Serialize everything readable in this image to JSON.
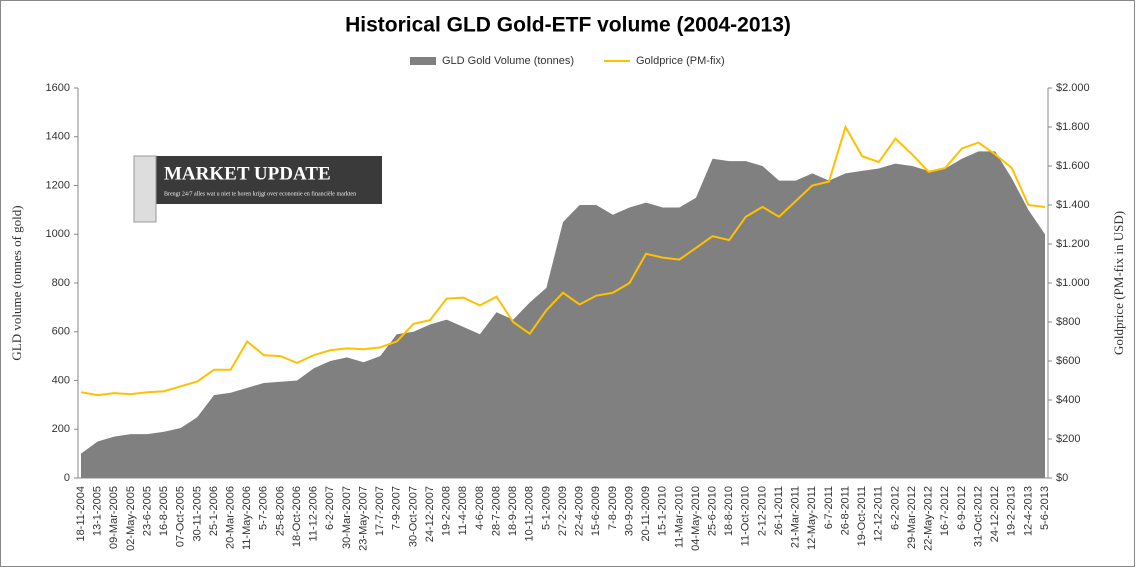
{
  "chart_data": {
    "type": "area-line",
    "title": "Historical GLD Gold-ETF volume (2004-2013)",
    "y_label": "GLD volume (tonnes of gold)",
    "y2_label": "Goldprice (PM-fix in USD)",
    "annotations": [
      "MARKET UPDATE",
      "Brengt 24/7 alles wat u niet te horen krijgt over economie en financiële markten"
    ],
    "categories": [
      "18-11-2004",
      "13-1-2005",
      "09-Mar-2005",
      "02-May-2005",
      "23-6-2005",
      "16-8-2005",
      "07-Oct-2005",
      "30-11-2005",
      "25-1-2006",
      "20-Mar-2006",
      "11-May-2006",
      "5-7-2006",
      "25-8-2006",
      "18-Oct-2006",
      "11-12-2006",
      "6-2-2007",
      "30-Mar-2007",
      "23-May-2007",
      "17-7-2007",
      "7-9-2007",
      "30-Oct-2007",
      "24-12-2007",
      "19-2-2008",
      "11-4-2008",
      "4-6-2008",
      "28-7-2008",
      "18-9-2008",
      "10-11-2008",
      "5-1-2009",
      "27-2-2009",
      "22-4-2009",
      "15-6-2009",
      "7-8-2009",
      "30-9-2009",
      "20-11-2009",
      "15-1-2010",
      "11-Mar-2010",
      "04-May-2010",
      "25-6-2010",
      "18-8-2010",
      "11-Oct-2010",
      "2-12-2010",
      "26-1-2011",
      "21-Mar-2011",
      "12-May-2011",
      "6-7-2011",
      "26-8-2011",
      "19-Oct-2011",
      "12-12-2011",
      "6-2-2012",
      "29-Mar-2012",
      "22-May-2012",
      "16-7-2012",
      "6-9-2012",
      "31-Oct-2012",
      "24-12-2012",
      "19-2-2013",
      "12-4-2013",
      "5-6-2013"
    ],
    "series": [
      {
        "name": "GLD Gold Volume (tonnes)",
        "color": "#808080",
        "kind": "area",
        "values": [
          100,
          150,
          170,
          180,
          180,
          190,
          205,
          250,
          340,
          350,
          370,
          390,
          395,
          400,
          450,
          480,
          495,
          475,
          500,
          590,
          600,
          630,
          650,
          620,
          590,
          680,
          650,
          720,
          780,
          1050,
          1120,
          1120,
          1080,
          1110,
          1130,
          1110,
          1110,
          1150,
          1310,
          1300,
          1300,
          1280,
          1220,
          1220,
          1250,
          1220,
          1250,
          1260,
          1270,
          1290,
          1280,
          1260,
          1270,
          1310,
          1340,
          1340,
          1230,
          1100,
          1000
        ]
      },
      {
        "name": "Goldprice (PM-fix)",
        "color": "#ffc000",
        "kind": "line",
        "axis": "y2",
        "values": [
          440,
          425,
          435,
          430,
          440,
          445,
          470,
          495,
          555,
          555,
          700,
          630,
          625,
          590,
          630,
          655,
          665,
          660,
          670,
          700,
          790,
          810,
          920,
          925,
          885,
          930,
          800,
          740,
          860,
          950,
          890,
          935,
          950,
          1000,
          1150,
          1130,
          1120,
          1180,
          1240,
          1220,
          1340,
          1390,
          1340,
          1420,
          1500,
          1520,
          1800,
          1650,
          1620,
          1740,
          1660,
          1570,
          1590,
          1690,
          1720,
          1660,
          1590,
          1400,
          1390
        ]
      }
    ],
    "ylim": [
      0,
      1600
    ],
    "yticks": [
      0,
      200,
      400,
      600,
      800,
      1000,
      1200,
      1400,
      1600
    ],
    "y2lim": [
      0,
      2000
    ],
    "y2ticks": [
      {
        "value": 0,
        "label": "$0"
      },
      {
        "value": 200,
        "label": "$200"
      },
      {
        "value": 400,
        "label": "$400"
      },
      {
        "value": 600,
        "label": "$600"
      },
      {
        "value": 800,
        "label": "$800"
      },
      {
        "value": 1000,
        "label": "$1.000"
      },
      {
        "value": 1200,
        "label": "$1.200"
      },
      {
        "value": 1400,
        "label": "$1.400"
      },
      {
        "value": 1600,
        "label": "$1.600"
      },
      {
        "value": 1800,
        "label": "$1.800"
      },
      {
        "value": 2000,
        "label": "$2.000"
      }
    ],
    "legend": "top",
    "grid": false
  }
}
